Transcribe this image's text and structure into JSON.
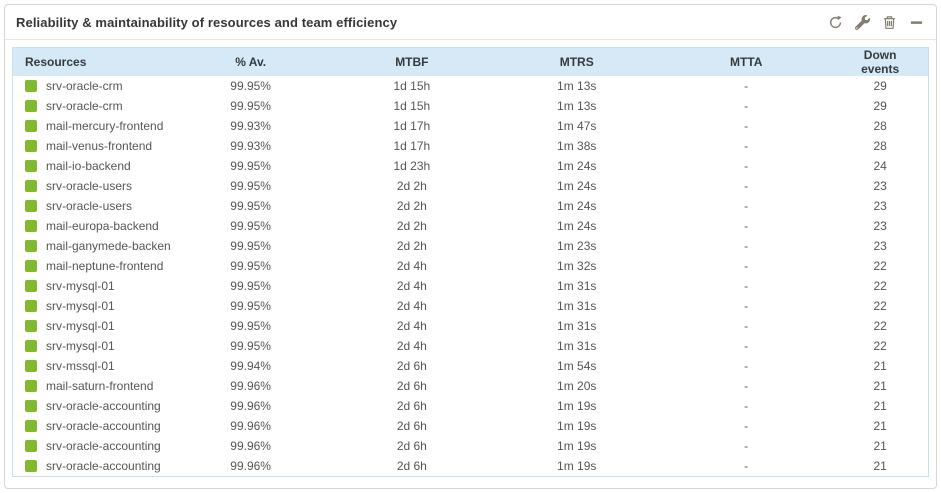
{
  "widget": {
    "title": "Reliability & maintainability of resources and team efficiency",
    "toolbar": [
      {
        "name": "refresh",
        "icon": "refresh-icon"
      },
      {
        "name": "configure",
        "icon": "wrench-icon"
      },
      {
        "name": "delete",
        "icon": "trash-icon"
      },
      {
        "name": "collapse",
        "icon": "minus-icon"
      }
    ]
  },
  "colors": {
    "status_ok": "#82B92E",
    "header_bg": "#d5eaf6",
    "table_border": "#c8dfec",
    "icon": "#847e72"
  },
  "table": {
    "columns": [
      {
        "key": "resource",
        "label": "Resources",
        "align": "left"
      },
      {
        "key": "availability",
        "label": "% Av.",
        "align": "center"
      },
      {
        "key": "mtbf",
        "label": "MTBF",
        "align": "center"
      },
      {
        "key": "mtrs",
        "label": "MTRS",
        "align": "center"
      },
      {
        "key": "mtta",
        "label": "MTTA",
        "align": "center"
      },
      {
        "key": "down_events",
        "label": "Down events",
        "align": "center"
      }
    ],
    "rows": [
      {
        "resource": "srv-oracle-crm",
        "availability": "99.95%",
        "mtbf": "1d 15h",
        "mtrs": "1m 13s",
        "mtta": "-",
        "down_events": "29"
      },
      {
        "resource": "srv-oracle-crm",
        "availability": "99.95%",
        "mtbf": "1d 15h",
        "mtrs": "1m 13s",
        "mtta": "-",
        "down_events": "29"
      },
      {
        "resource": "mail-mercury-frontend",
        "availability": "99.93%",
        "mtbf": "1d 17h",
        "mtrs": "1m 47s",
        "mtta": "-",
        "down_events": "28"
      },
      {
        "resource": "mail-venus-frontend",
        "availability": "99.93%",
        "mtbf": "1d 17h",
        "mtrs": "1m 38s",
        "mtta": "-",
        "down_events": "28"
      },
      {
        "resource": "mail-io-backend",
        "availability": "99.95%",
        "mtbf": "1d 23h",
        "mtrs": "1m 24s",
        "mtta": "-",
        "down_events": "24"
      },
      {
        "resource": "srv-oracle-users",
        "availability": "99.95%",
        "mtbf": "2d 2h",
        "mtrs": "1m 24s",
        "mtta": "-",
        "down_events": "23"
      },
      {
        "resource": "srv-oracle-users",
        "availability": "99.95%",
        "mtbf": "2d 2h",
        "mtrs": "1m 24s",
        "mtta": "-",
        "down_events": "23"
      },
      {
        "resource": "mail-europa-backend",
        "availability": "99.95%",
        "mtbf": "2d 2h",
        "mtrs": "1m 24s",
        "mtta": "-",
        "down_events": "23"
      },
      {
        "resource": "mail-ganymede-backend",
        "availability": "99.95%",
        "mtbf": "2d 2h",
        "mtrs": "1m 23s",
        "mtta": "-",
        "down_events": "23"
      },
      {
        "resource": "mail-neptune-frontend",
        "availability": "99.95%",
        "mtbf": "2d 4h",
        "mtrs": "1m 32s",
        "mtta": "-",
        "down_events": "22"
      },
      {
        "resource": "srv-mysql-01",
        "availability": "99.95%",
        "mtbf": "2d 4h",
        "mtrs": "1m 31s",
        "mtta": "-",
        "down_events": "22"
      },
      {
        "resource": "srv-mysql-01",
        "availability": "99.95%",
        "mtbf": "2d 4h",
        "mtrs": "1m 31s",
        "mtta": "-",
        "down_events": "22"
      },
      {
        "resource": "srv-mysql-01",
        "availability": "99.95%",
        "mtbf": "2d 4h",
        "mtrs": "1m 31s",
        "mtta": "-",
        "down_events": "22"
      },
      {
        "resource": "srv-mysql-01",
        "availability": "99.95%",
        "mtbf": "2d 4h",
        "mtrs": "1m 31s",
        "mtta": "-",
        "down_events": "22"
      },
      {
        "resource": "srv-mssql-01",
        "availability": "99.94%",
        "mtbf": "2d 6h",
        "mtrs": "1m 54s",
        "mtta": "-",
        "down_events": "21"
      },
      {
        "resource": "mail-saturn-frontend",
        "availability": "99.96%",
        "mtbf": "2d 6h",
        "mtrs": "1m 20s",
        "mtta": "-",
        "down_events": "21"
      },
      {
        "resource": "srv-oracle-accounting",
        "availability": "99.96%",
        "mtbf": "2d 6h",
        "mtrs": "1m 19s",
        "mtta": "-",
        "down_events": "21"
      },
      {
        "resource": "srv-oracle-accounting",
        "availability": "99.96%",
        "mtbf": "2d 6h",
        "mtrs": "1m 19s",
        "mtta": "-",
        "down_events": "21"
      },
      {
        "resource": "srv-oracle-accounting",
        "availability": "99.96%",
        "mtbf": "2d 6h",
        "mtrs": "1m 19s",
        "mtta": "-",
        "down_events": "21"
      },
      {
        "resource": "srv-oracle-accounting",
        "availability": "99.96%",
        "mtbf": "2d 6h",
        "mtrs": "1m 19s",
        "mtta": "-",
        "down_events": "21"
      }
    ]
  }
}
